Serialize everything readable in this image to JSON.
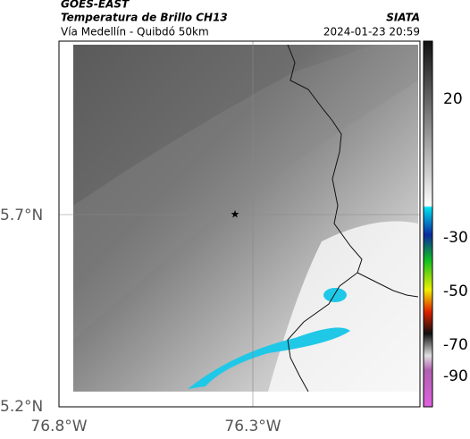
{
  "header": {
    "product": "GOES-EAST",
    "title": "Temperatura de Brillo CH13",
    "subtitle": "Vía Medellín - Quibdó 50km",
    "source": "SIATA",
    "datetime": "2024-01-23 20:59"
  },
  "axes": {
    "y_ticks": [
      "5.7°N",
      "5.2°N"
    ],
    "x_ticks": [
      "76.8°W",
      "76.3°W"
    ]
  },
  "colorbar": {
    "ticks": [
      "20",
      "-30",
      "-50",
      "-70",
      "-90"
    ]
  }
}
